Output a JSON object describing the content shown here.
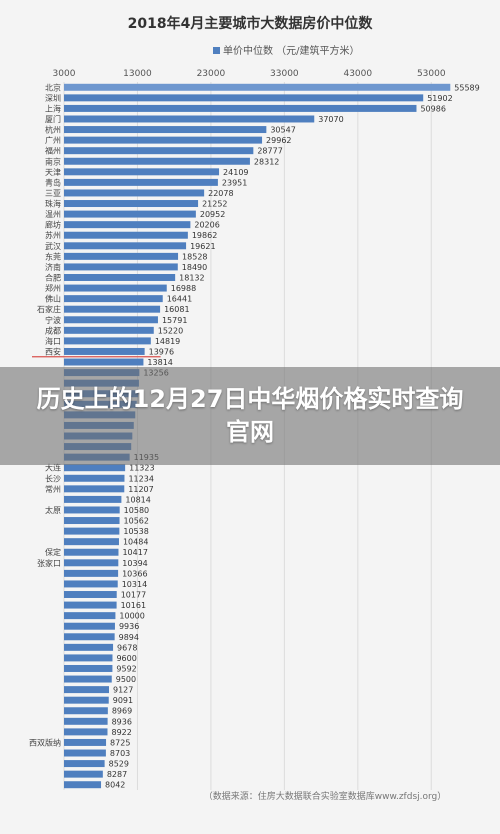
{
  "overlay_headline": "历史上的12月27日中华烟价格实时查询官网",
  "chart_data": {
    "type": "bar",
    "orientation": "horizontal",
    "title": "2018年4月主要城市大数据房价中位数",
    "legend": {
      "label": "单价中位数 （元/建筑平方米）",
      "position": "top"
    },
    "source": "（数据来源：住房大数据联合实验室数据库www.zfdsj.org）",
    "xlim": [
      3000,
      58000
    ],
    "xticks": [
      3000,
      13000,
      23000,
      33000,
      43000,
      53000
    ],
    "xtick_labels": [
      "3000",
      "13000",
      "23000",
      "33000",
      "43000",
      "53000"
    ],
    "grid": true,
    "colors": {
      "bar": "#4f7fbf",
      "bar_highlight": "#6e97cf",
      "grid": "#dcdcdc",
      "marker_line": "#d9534f"
    },
    "categories": [
      "北京",
      "深圳",
      "上海",
      "厦门",
      "杭州",
      "广州",
      "福州",
      "南京",
      "天津",
      "青岛",
      "三亚",
      "珠海",
      "温州",
      "廊坊",
      "苏州",
      "武汉",
      "东莞",
      "济南",
      "合肥",
      "郑州",
      "佛山",
      "石家庄",
      "宁波",
      "成都",
      "海口",
      "西安",
      "",
      "",
      "",
      "",
      "",
      "",
      "",
      "",
      "",
      "",
      "大连",
      "长沙",
      "常州",
      "",
      "太原",
      "",
      "",
      "",
      "保定",
      "张家口",
      "",
      "",
      "",
      "",
      "",
      "",
      "",
      "",
      "",
      "",
      "",
      "",
      "",
      "",
      "",
      "",
      "西双版纳",
      "",
      "",
      "",
      ""
    ],
    "values": [
      55589,
      51902,
      50986,
      37070,
      30547,
      29962,
      28777,
      28312,
      24109,
      23951,
      22078,
      21252,
      20952,
      20206,
      19862,
      19621,
      18528,
      18490,
      18132,
      16988,
      16441,
      16081,
      15791,
      15220,
      14819,
      13976,
      13814,
      13256,
      13200,
      13100,
      12900,
      12700,
      12500,
      12300,
      12150,
      11935,
      11323,
      11234,
      11207,
      10814,
      10580,
      10562,
      10538,
      10484,
      10417,
      10394,
      10366,
      10314,
      10177,
      10161,
      10000,
      9936,
      9894,
      9678,
      9600,
      9592,
      9500,
      9127,
      9091,
      8969,
      8936,
      8922,
      8725,
      8703,
      8529,
      8287,
      8042
    ],
    "value_labels": [
      "55589",
      "51902",
      "50986",
      "37070",
      "30547",
      "29962",
      "28777",
      "28312",
      "24109",
      "23951",
      "22078",
      "21252",
      "20952",
      "20206",
      "19862",
      "19621",
      "18528",
      "18490",
      "18132",
      "16988",
      "16441",
      "16081",
      "15791",
      "15220",
      "14819",
      "13976",
      "13814",
      "13256",
      "",
      "",
      "",
      "",
      "",
      "",
      "",
      "11935",
      "11323",
      "11234",
      "11207",
      "10814",
      "10580",
      "10562",
      "10538",
      "10484",
      "10417",
      "10394",
      "10366",
      "10314",
      "10177",
      "10161",
      "10000",
      "9936",
      "9894",
      "9678",
      "9600",
      "9592",
      "9500",
      "9127",
      "9091",
      "8969",
      "8936",
      "8922",
      "8725",
      "8703",
      "8529",
      "8287",
      "8042"
    ],
    "highlight_index": 0,
    "marker_after_category": "西安"
  }
}
